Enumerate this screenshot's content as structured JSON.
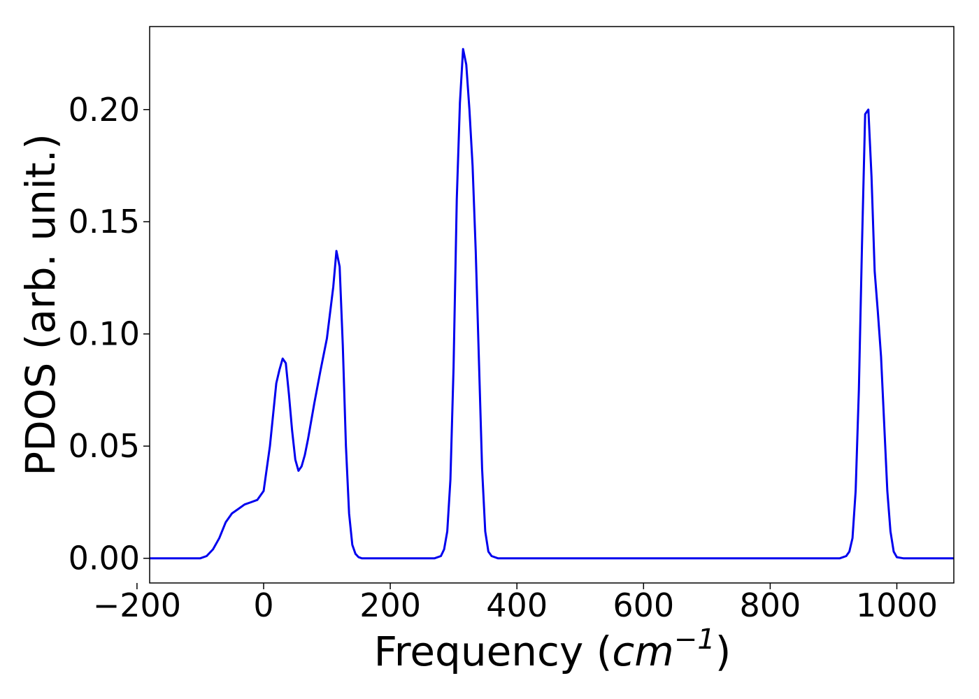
{
  "chart_data": {
    "type": "line",
    "xlabel_prefix": "Frequency (",
    "xlabel_unit": "cm",
    "xlabel_exponent": "−1",
    "xlabel_suffix": ")",
    "ylabel": "PDOS (arb. unit.)",
    "xlim": [
      -180,
      1090
    ],
    "ylim": [
      -0.011,
      0.237
    ],
    "grid": false,
    "legend": "none",
    "xticks": [
      -200,
      0,
      200,
      400,
      600,
      800,
      1000
    ],
    "xtick_labels": [
      "−200",
      "0",
      "200",
      "400",
      "600",
      "800",
      "1000"
    ],
    "yticks": [
      0.0,
      0.05,
      0.1,
      0.15,
      0.2
    ],
    "ytick_labels": [
      "0.00",
      "0.05",
      "0.10",
      "0.15",
      "0.20"
    ],
    "series": [
      {
        "color": "#0000ee",
        "x": [
          -180,
          -100,
          -90,
          -80,
          -70,
          -60,
          -50,
          -40,
          -30,
          -20,
          -10,
          0,
          10,
          20,
          25,
          30,
          35,
          40,
          45,
          50,
          55,
          60,
          65,
          70,
          80,
          90,
          100,
          110,
          115,
          120,
          125,
          130,
          135,
          140,
          145,
          150,
          155,
          160,
          170,
          270,
          280,
          285,
          290,
          295,
          300,
          305,
          310,
          315,
          320,
          325,
          330,
          335,
          340,
          345,
          350,
          355,
          360,
          370,
          380,
          910,
          920,
          925,
          930,
          935,
          940,
          945,
          950,
          955,
          960,
          965,
          970,
          975,
          980,
          985,
          990,
          995,
          1000,
          1010,
          1020,
          1090
        ],
        "y": [
          0,
          0,
          0.001,
          0.004,
          0.009,
          0.016,
          0.02,
          0.022,
          0.024,
          0.025,
          0.026,
          0.03,
          0.05,
          0.078,
          0.084,
          0.089,
          0.087,
          0.073,
          0.057,
          0.044,
          0.039,
          0.041,
          0.046,
          0.053,
          0.069,
          0.084,
          0.098,
          0.121,
          0.137,
          0.13,
          0.095,
          0.05,
          0.02,
          0.006,
          0.002,
          0.0005,
          0,
          0,
          0,
          0,
          0.001,
          0.004,
          0.012,
          0.035,
          0.085,
          0.16,
          0.203,
          0.227,
          0.22,
          0.2,
          0.175,
          0.137,
          0.088,
          0.04,
          0.012,
          0.003,
          0.001,
          0,
          0,
          0,
          0.001,
          0.003,
          0.009,
          0.03,
          0.075,
          0.14,
          0.198,
          0.2,
          0.17,
          0.128,
          0.11,
          0.09,
          0.06,
          0.03,
          0.012,
          0.003,
          0.0005,
          0,
          0,
          0
        ]
      }
    ]
  }
}
